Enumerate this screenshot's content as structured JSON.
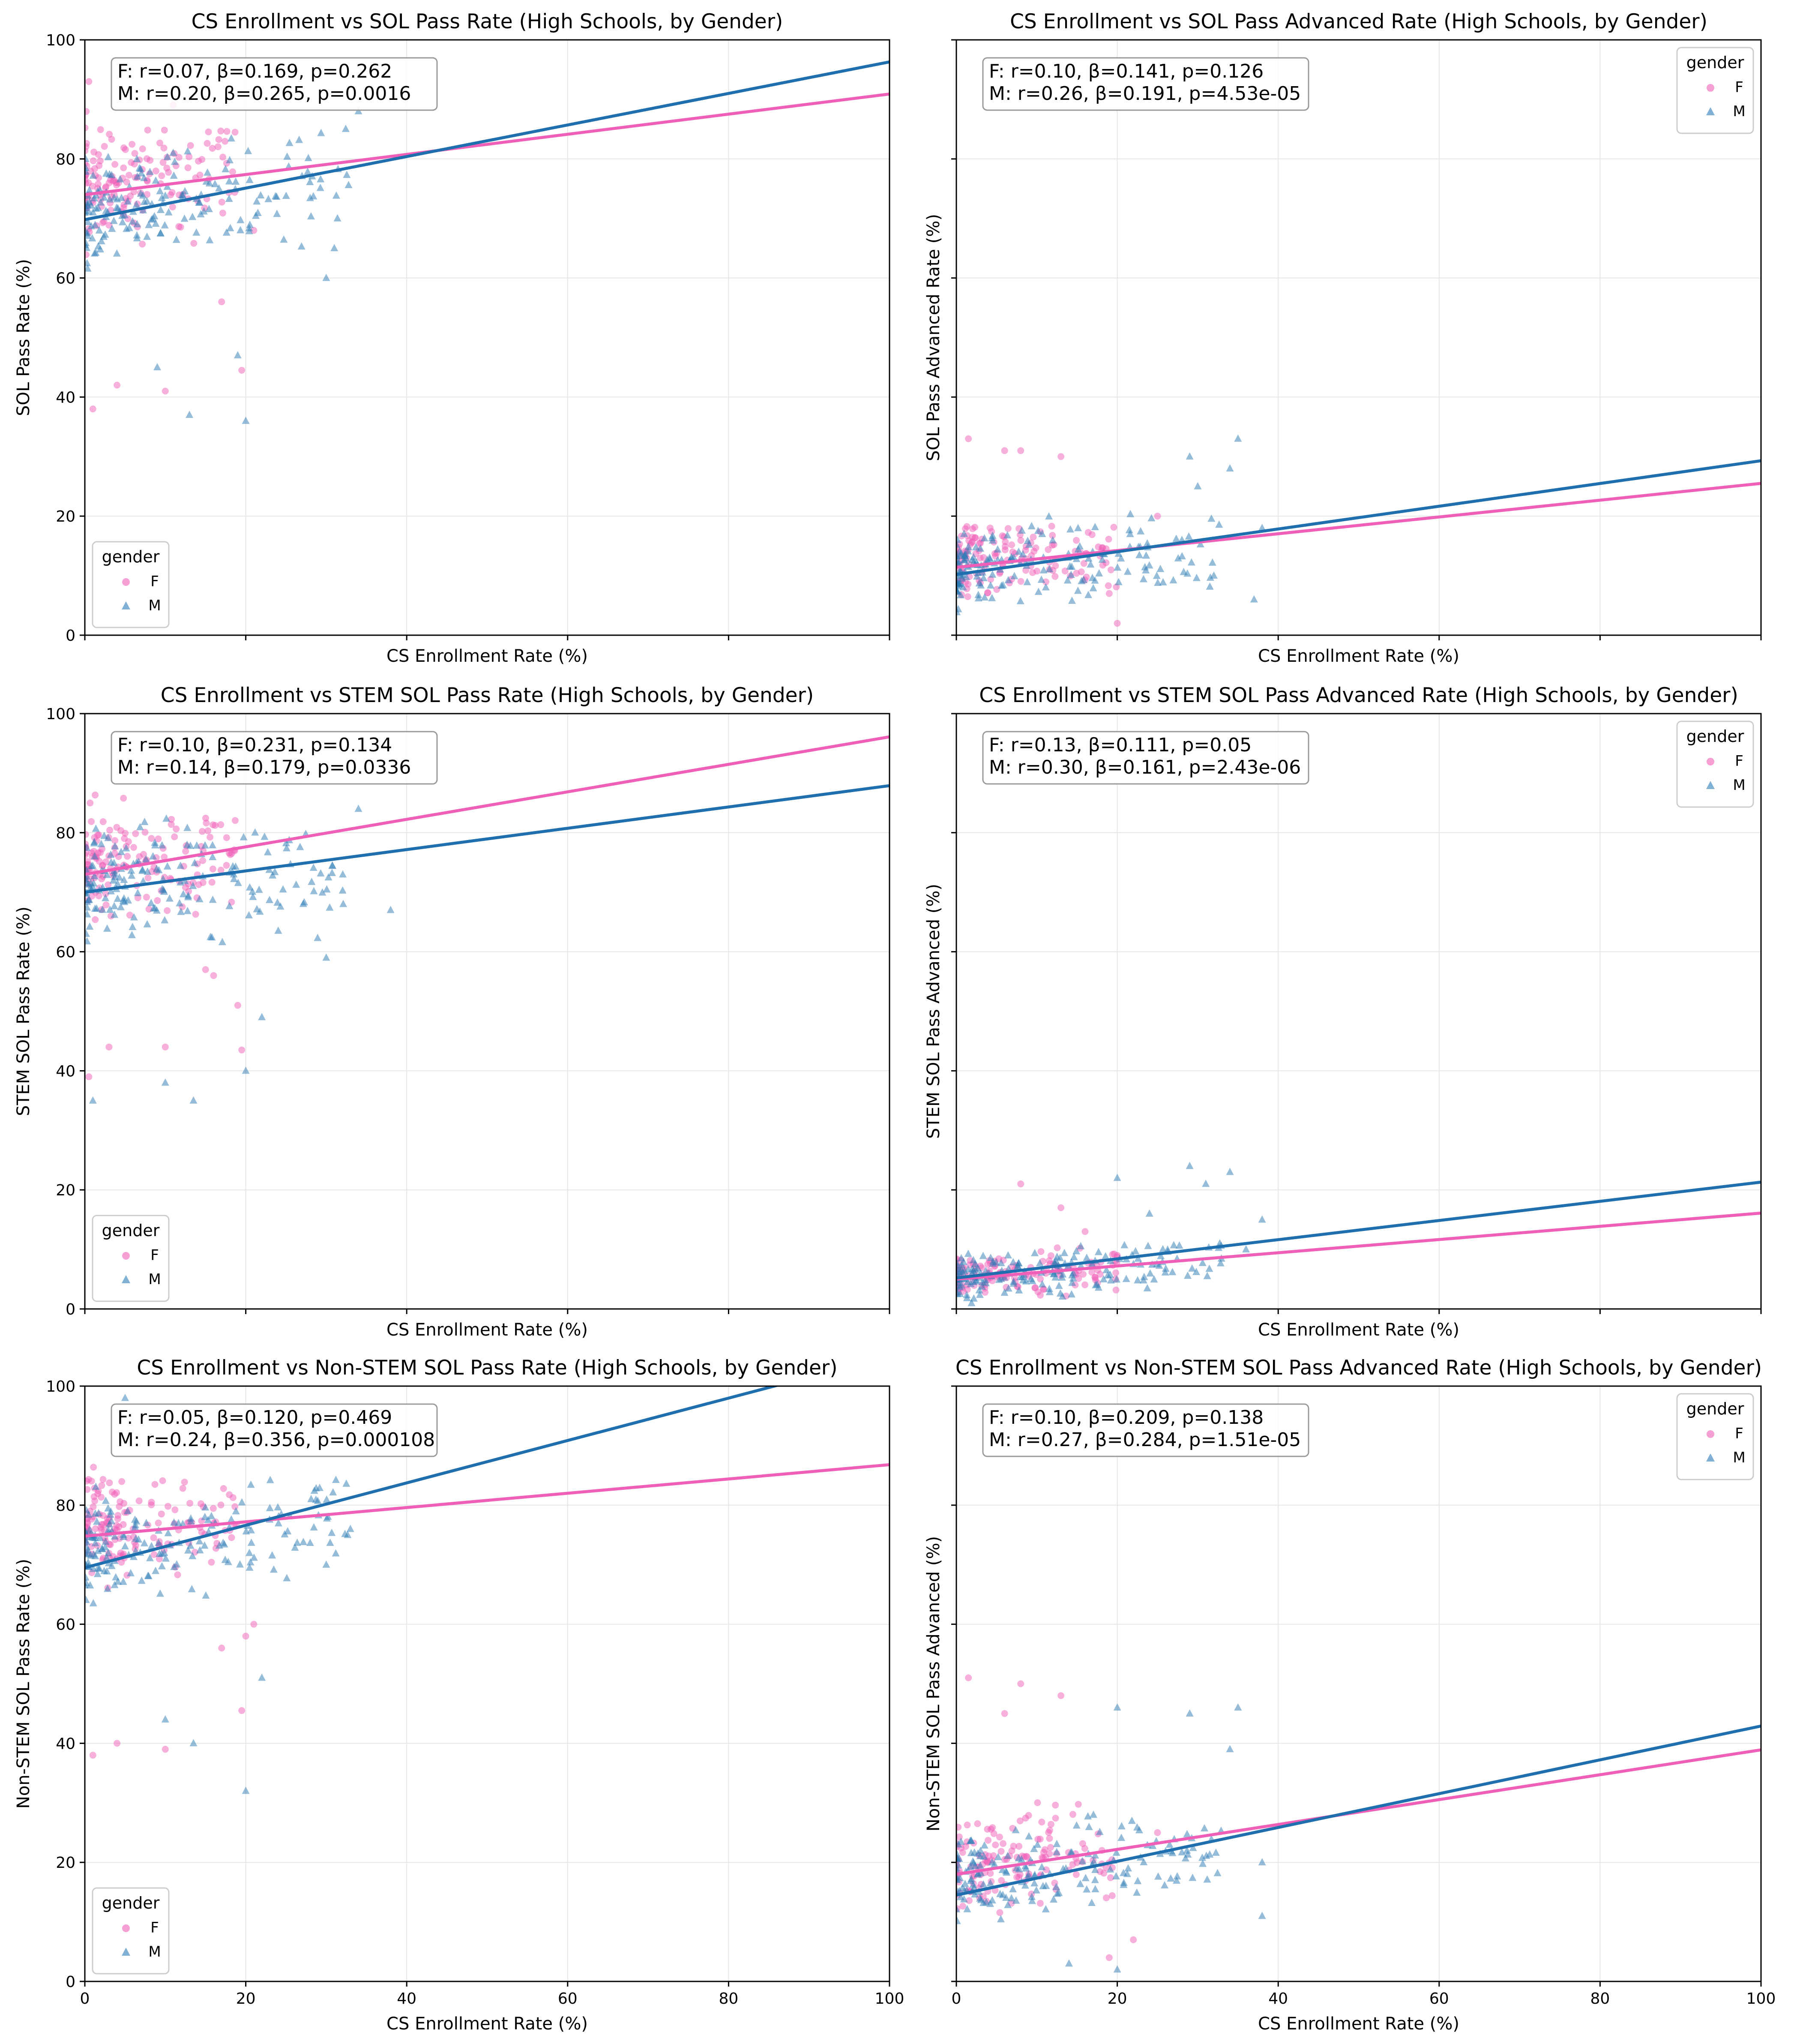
{
  "colors": {
    "F": "#ef5fb8",
    "M": "#2c7bb6",
    "F_line": "#ef5fb8",
    "M_line": "#1f6fae"
  },
  "chart_data": [
    {
      "type": "scatter",
      "title": "CS Enrollment vs SOL Pass Rate (High Schools, by Gender)",
      "xlabel": "CS Enrollment Rate (%)",
      "ylabel": "SOL Pass Rate (%)",
      "xlim": [
        0,
        100
      ],
      "ylim": [
        0,
        100
      ],
      "xticks": [
        0,
        20,
        40,
        60,
        80,
        100
      ],
      "yticks": [
        0,
        20,
        40,
        60,
        80,
        100
      ],
      "show_xtick_labels": false,
      "show_ytick_labels": true,
      "grid": true,
      "stats_box": [
        "F: r=0.07, β=0.169, p=0.262",
        "M: r=0.20, β=0.265, p=0.0016"
      ],
      "legend": {
        "title": "gender",
        "position": "lower-left",
        "entries": [
          "F",
          "M"
        ]
      },
      "series": [
        {
          "name": "F",
          "marker": "circle",
          "fit": {
            "intercept": 74.0,
            "slope": 0.169
          },
          "cluster": {
            "count": 150,
            "x_min": 0,
            "x_max": 19,
            "y_center": 76,
            "y_spread": 13,
            "seed": 11
          },
          "outliers": [
            [
              0.5,
              93
            ],
            [
              1,
              38
            ],
            [
              4,
              42
            ],
            [
              10,
              41
            ],
            [
              19.5,
              44.5
            ],
            [
              17,
              56
            ],
            [
              11,
              89
            ],
            [
              21,
              68
            ]
          ]
        },
        {
          "name": "M",
          "marker": "triangle",
          "fit": {
            "intercept": 69.8,
            "slope": 0.265
          },
          "cluster": {
            "count": 180,
            "x_min": 0,
            "x_max": 33,
            "y_center": 72,
            "y_spread": 13,
            "seed": 23
          },
          "outliers": [
            [
              20,
              36
            ],
            [
              13,
              37
            ],
            [
              9,
              45
            ],
            [
              30,
              60
            ],
            [
              31,
              65
            ],
            [
              34,
              88
            ],
            [
              19,
              47
            ]
          ]
        }
      ]
    },
    {
      "type": "scatter",
      "title": "CS Enrollment vs SOL Pass Advanced Rate (High Schools, by Gender)",
      "xlabel": "CS Enrollment Rate (%)",
      "ylabel": "SOL Pass Advanced Rate (%)",
      "xlim": [
        0,
        100
      ],
      "ylim": [
        0,
        100
      ],
      "xticks": [
        0,
        20,
        40,
        60,
        80,
        100
      ],
      "yticks": [
        0,
        20,
        40,
        60,
        80,
        100
      ],
      "show_xtick_labels": false,
      "show_ytick_labels": false,
      "grid": true,
      "stats_box": [
        "F: r=0.10, β=0.141, p=0.126",
        "M: r=0.26, β=0.191, p=4.53e-05"
      ],
      "legend": {
        "title": "gender",
        "position": "upper-right",
        "entries": [
          "F",
          "M"
        ]
      },
      "series": [
        {
          "name": "F",
          "marker": "circle",
          "fit": {
            "intercept": 11.4,
            "slope": 0.141
          },
          "cluster": {
            "count": 140,
            "x_min": 0,
            "x_max": 20,
            "y_center": 13,
            "y_spread": 8,
            "seed": 31
          },
          "outliers": [
            [
              1.5,
              33
            ],
            [
              6,
              31
            ],
            [
              8,
              31
            ],
            [
              13,
              30
            ],
            [
              25,
              20
            ],
            [
              19,
              7
            ],
            [
              20,
              2
            ]
          ]
        },
        {
          "name": "M",
          "marker": "triangle",
          "fit": {
            "intercept": 10.2,
            "slope": 0.191
          },
          "cluster": {
            "count": 180,
            "x_min": 0,
            "x_max": 33,
            "y_center": 11,
            "y_spread": 9,
            "seed": 37
          },
          "outliers": [
            [
              35,
              33
            ],
            [
              34,
              28
            ],
            [
              29,
              30
            ],
            [
              30,
              25
            ],
            [
              37,
              6
            ],
            [
              38,
              18
            ],
            [
              32,
              10
            ]
          ]
        }
      ]
    },
    {
      "type": "scatter",
      "title": "CS Enrollment vs STEM SOL Pass Rate (High Schools, by Gender)",
      "xlabel": "CS Enrollment Rate (%)",
      "ylabel": "STEM SOL Pass Rate (%)",
      "xlim": [
        0,
        100
      ],
      "ylim": [
        0,
        100
      ],
      "xticks": [
        0,
        20,
        40,
        60,
        80,
        100
      ],
      "yticks": [
        0,
        20,
        40,
        60,
        80,
        100
      ],
      "show_xtick_labels": false,
      "show_ytick_labels": true,
      "grid": true,
      "stats_box": [
        "F: r=0.10, β=0.231, p=0.134",
        "M: r=0.14, β=0.179, p=0.0336"
      ],
      "legend": {
        "title": "gender",
        "position": "lower-left",
        "entries": [
          "F",
          "M"
        ]
      },
      "series": [
        {
          "name": "F",
          "marker": "circle",
          "fit": {
            "intercept": 73.0,
            "slope": 0.231
          },
          "cluster": {
            "count": 150,
            "x_min": 0,
            "x_max": 19,
            "y_center": 75,
            "y_spread": 13,
            "seed": 41
          },
          "outliers": [
            [
              0.5,
              39
            ],
            [
              3,
              44
            ],
            [
              10,
              44
            ],
            [
              19.5,
              43.5
            ],
            [
              16,
              56
            ],
            [
              19,
              51
            ],
            [
              15,
              57
            ]
          ]
        },
        {
          "name": "M",
          "marker": "triangle",
          "fit": {
            "intercept": 70.0,
            "slope": 0.179
          },
          "cluster": {
            "count": 180,
            "x_min": 0,
            "x_max": 33,
            "y_center": 71,
            "y_spread": 13,
            "seed": 43
          },
          "outliers": [
            [
              1,
              35
            ],
            [
              13.5,
              35
            ],
            [
              10,
              38
            ],
            [
              20,
              40
            ],
            [
              22,
              49
            ],
            [
              30,
              59
            ],
            [
              38,
              67
            ],
            [
              34,
              84
            ]
          ]
        }
      ]
    },
    {
      "type": "scatter",
      "title": "CS Enrollment vs STEM SOL Pass Advanced Rate (High Schools, by Gender)",
      "xlabel": "CS Enrollment Rate (%)",
      "ylabel": "STEM SOL Pass Advanced (%)",
      "xlim": [
        0,
        100
      ],
      "ylim": [
        0,
        100
      ],
      "xticks": [
        0,
        20,
        40,
        60,
        80,
        100
      ],
      "yticks": [
        0,
        20,
        40,
        60,
        80,
        100
      ],
      "show_xtick_labels": false,
      "show_ytick_labels": false,
      "grid": true,
      "stats_box": [
        "F: r=0.13, β=0.111, p=0.05",
        "M: r=0.30, β=0.161, p=2.43e-06"
      ],
      "legend": {
        "title": "gender",
        "position": "upper-right",
        "entries": [
          "F",
          "M"
        ]
      },
      "series": [
        {
          "name": "F",
          "marker": "circle",
          "fit": {
            "intercept": 5.0,
            "slope": 0.111
          },
          "cluster": {
            "count": 140,
            "x_min": 0,
            "x_max": 20,
            "y_center": 6,
            "y_spread": 5,
            "seed": 51
          },
          "outliers": [
            [
              8,
              21
            ],
            [
              13,
              17
            ],
            [
              16,
              13
            ],
            [
              20,
              9
            ]
          ]
        },
        {
          "name": "M",
          "marker": "triangle",
          "fit": {
            "intercept": 5.2,
            "slope": 0.161
          },
          "cluster": {
            "count": 180,
            "x_min": 0,
            "x_max": 33,
            "y_center": 6,
            "y_spread": 6,
            "seed": 53
          },
          "outliers": [
            [
              29,
              24
            ],
            [
              34,
              23
            ],
            [
              31,
              21
            ],
            [
              38,
              15
            ],
            [
              36,
              10
            ],
            [
              24,
              16
            ],
            [
              20,
              22
            ]
          ]
        }
      ]
    },
    {
      "type": "scatter",
      "title": "CS Enrollment vs Non-STEM SOL Pass Rate (High Schools, by Gender)",
      "xlabel": "CS Enrollment Rate (%)",
      "ylabel": "Non-STEM SOL Pass Rate (%)",
      "xlim": [
        0,
        100
      ],
      "ylim": [
        0,
        100
      ],
      "xticks": [
        0,
        20,
        40,
        60,
        80,
        100
      ],
      "yticks": [
        0,
        20,
        40,
        60,
        80,
        100
      ],
      "show_xtick_labels": true,
      "show_ytick_labels": true,
      "grid": true,
      "stats_box": [
        "F: r=0.05, β=0.120, p=0.469",
        "M: r=0.24, β=0.356, p=0.000108"
      ],
      "legend": {
        "title": "gender",
        "position": "lower-left",
        "entries": [
          "F",
          "M"
        ]
      },
      "series": [
        {
          "name": "F",
          "marker": "circle",
          "fit": {
            "intercept": 74.8,
            "slope": 0.12
          },
          "cluster": {
            "count": 150,
            "x_min": 0,
            "x_max": 19,
            "y_center": 76,
            "y_spread": 12,
            "seed": 61
          },
          "outliers": [
            [
              1,
              38
            ],
            [
              4,
              40
            ],
            [
              10,
              39
            ],
            [
              19.5,
              45.5
            ],
            [
              17,
              56
            ],
            [
              20,
              58
            ],
            [
              21,
              60
            ]
          ]
        },
        {
          "name": "M",
          "marker": "triangle",
          "fit": {
            "intercept": 69.5,
            "slope": 0.356
          },
          "cluster": {
            "count": 180,
            "x_min": 0,
            "x_max": 33,
            "y_center": 73,
            "y_spread": 12,
            "seed": 67
          },
          "outliers": [
            [
              20,
              32
            ],
            [
              13.5,
              40
            ],
            [
              10,
              44
            ],
            [
              5,
              98
            ],
            [
              22,
              51
            ],
            [
              30,
              70
            ],
            [
              33,
              76
            ]
          ]
        }
      ]
    },
    {
      "type": "scatter",
      "title": "CS Enrollment vs Non-STEM SOL Pass Advanced Rate (High Schools, by Gender)",
      "xlabel": "CS Enrollment Rate (%)",
      "ylabel": "Non-STEM SOL Pass Advanced (%)",
      "xlim": [
        0,
        100
      ],
      "ylim": [
        0,
        100
      ],
      "xticks": [
        0,
        20,
        40,
        60,
        80,
        100
      ],
      "yticks": [
        0,
        20,
        40,
        60,
        80,
        100
      ],
      "show_xtick_labels": true,
      "show_ytick_labels": false,
      "grid": true,
      "stats_box": [
        "F: r=0.10, β=0.209, p=0.138",
        "M: r=0.27, β=0.284, p=1.51e-05"
      ],
      "legend": {
        "title": "gender",
        "position": "upper-right",
        "entries": [
          "F",
          "M"
        ]
      },
      "series": [
        {
          "name": "F",
          "marker": "circle",
          "fit": {
            "intercept": 18.0,
            "slope": 0.209
          },
          "cluster": {
            "count": 140,
            "x_min": 0,
            "x_max": 20,
            "y_center": 20,
            "y_spread": 11,
            "seed": 71
          },
          "outliers": [
            [
              1.5,
              51
            ],
            [
              8,
              50
            ],
            [
              13,
              48
            ],
            [
              6,
              45
            ],
            [
              25,
              25
            ],
            [
              22,
              7
            ],
            [
              19,
              4
            ]
          ]
        },
        {
          "name": "M",
          "marker": "triangle",
          "fit": {
            "intercept": 14.5,
            "slope": 0.284
          },
          "cluster": {
            "count": 180,
            "x_min": 0,
            "x_max": 33,
            "y_center": 18,
            "y_spread": 11,
            "seed": 73
          },
          "outliers": [
            [
              20,
              46
            ],
            [
              29,
              45
            ],
            [
              35,
              46
            ],
            [
              34,
              39
            ],
            [
              38,
              11
            ],
            [
              38,
              20
            ],
            [
              20,
              2
            ],
            [
              14,
              3
            ]
          ]
        }
      ]
    }
  ]
}
